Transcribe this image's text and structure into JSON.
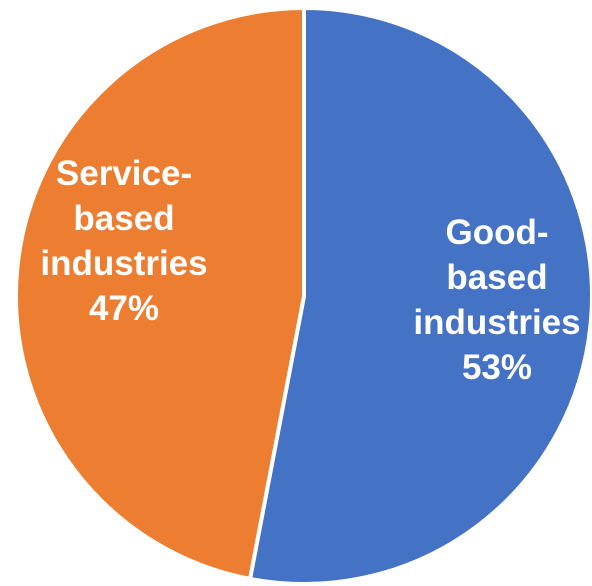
{
  "chart_data": {
    "type": "pie",
    "start_angle_deg": 0,
    "direction": "clockwise",
    "slices": [
      {
        "name": "Good-based industries",
        "value": 53,
        "display_label": "53%",
        "label_lines": [
          "Good-",
          "based",
          "industries",
          "53%"
        ],
        "color": "#4472C4"
      },
      {
        "name": "Service-based industries",
        "value": 47,
        "display_label": "47%",
        "label_lines": [
          "Service-",
          "based",
          "industries",
          "47%"
        ],
        "color": "#ED7D31"
      }
    ],
    "slice_border_color": "#FFFFFF",
    "legend": "none"
  }
}
